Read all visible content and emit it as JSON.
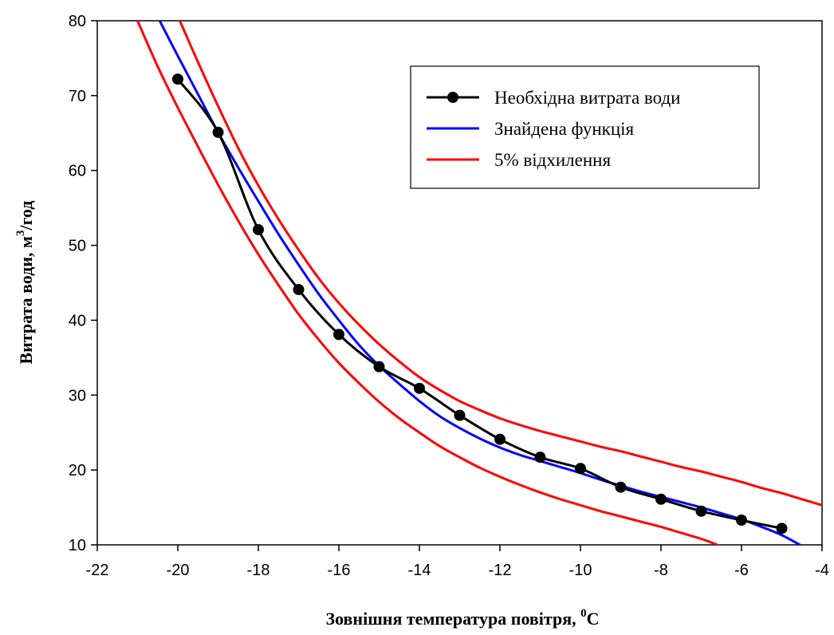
{
  "chart_data": {
    "type": "line",
    "xlabel": "Зовнішня температура повітря, ",
    "xlabel_sup": "0",
    "xlabel_unit": "C",
    "ylabel": "Витрата води, м",
    "ylabel_sup": "3",
    "ylabel_unit": "/год",
    "xlim": [
      -22,
      -4
    ],
    "ylim": [
      10,
      80
    ],
    "x_ticks": [
      "-22",
      "-20",
      "-18",
      "-16",
      "-14",
      "-12",
      "-10",
      "-8",
      "-6",
      "-4"
    ],
    "y_ticks": [
      "10",
      "20",
      "30",
      "40",
      "50",
      "60",
      "70",
      "80"
    ],
    "legend_position": "top-right",
    "grid": false,
    "series": [
      {
        "name": "Необхідна витрата води",
        "color": "#000000",
        "marker": "circle",
        "x": [
          -20,
          -19,
          -18,
          -17,
          -16,
          -15,
          -14,
          -13,
          -12,
          -11,
          -10,
          -9,
          -8,
          -7,
          -6,
          -5
        ],
        "y": [
          72.2,
          65.1,
          52.1,
          44.1,
          38.1,
          33.8,
          30.9,
          27.3,
          24.1,
          21.7,
          20.2,
          17.7,
          16.1,
          14.5,
          13.3,
          12.2
        ]
      },
      {
        "name": "Знайдена функція",
        "color": "#0000ff",
        "marker": "none",
        "x": [
          -20.45,
          -20,
          -19.5,
          -19,
          -18.5,
          -18,
          -17.5,
          -17,
          -16.5,
          -16,
          -15.5,
          -15,
          -14.5,
          -14,
          -13.5,
          -13,
          -12.5,
          -12,
          -11.5,
          -11,
          -10.5,
          -10,
          -9.5,
          -9,
          -8.5,
          -8,
          -7.5,
          -7,
          -6.5,
          -6,
          -5.5,
          -5,
          -4.55
        ],
        "y": [
          80,
          75.3,
          70.2,
          65.1,
          60.4,
          55.9,
          51.5,
          47.4,
          43.5,
          40.0,
          36.7,
          33.9,
          31.5,
          29.2,
          27.2,
          25.6,
          24.2,
          23.0,
          22.0,
          21.2,
          20.4,
          19.6,
          18.7,
          17.9,
          17.1,
          16.4,
          15.7,
          15.0,
          14.2,
          13.4,
          12.4,
          11.3,
          10
        ]
      },
      {
        "name": "5% відхилення",
        "color": "#ff0000",
        "marker": "none",
        "x": [
          -19.95,
          -19.5,
          -19,
          -18.5,
          -18,
          -17.5,
          -17,
          -16.5,
          -16,
          -15.5,
          -15,
          -14.5,
          -14,
          -13.5,
          -13,
          -12.5,
          -12,
          -11.5,
          -11,
          -10.5,
          -10,
          -9.5,
          -9,
          -8.5,
          -8,
          -7.5,
          -7,
          -6.5,
          -6,
          -5.5,
          -5,
          -4.5,
          -4
        ],
        "y": [
          80,
          74.5,
          68.6,
          63.0,
          58.0,
          53.5,
          49.4,
          45.6,
          42.3,
          39.4,
          36.8,
          34.5,
          32.4,
          30.7,
          29.2,
          28.0,
          26.9,
          26.0,
          25.2,
          24.5,
          23.8,
          23.1,
          22.5,
          21.8,
          21.1,
          20.4,
          19.8,
          19.1,
          18.4,
          17.6,
          16.9,
          16.1,
          15.3
        ]
      },
      {
        "name": "5% відхилення",
        "color": "#ff0000",
        "marker": "none",
        "x": [
          -21.0,
          -20.5,
          -20,
          -19.5,
          -19,
          -18.5,
          -18,
          -17.5,
          -17,
          -16.5,
          -16,
          -15.5,
          -15,
          -14.5,
          -14,
          -13.5,
          -13,
          -12.5,
          -12,
          -11.5,
          -11,
          -10.5,
          -10,
          -9.5,
          -9,
          -8.5,
          -8,
          -7.5,
          -7,
          -6.6
        ],
        "y": [
          80,
          73.9,
          68.4,
          63.2,
          58.1,
          53.3,
          48.8,
          44.7,
          40.8,
          37.4,
          34.3,
          31.6,
          29.1,
          26.9,
          25.0,
          23.2,
          21.7,
          20.3,
          19.1,
          18.0,
          17.0,
          16.1,
          15.3,
          14.5,
          13.8,
          13.1,
          12.4,
          11.6,
          10.8,
          10
        ]
      }
    ]
  }
}
